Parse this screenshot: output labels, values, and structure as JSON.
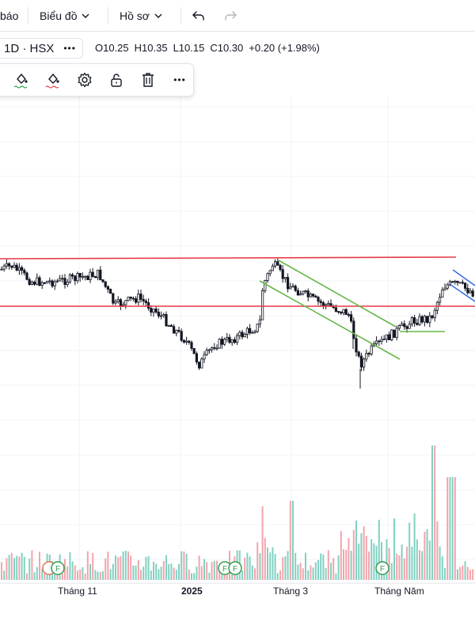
{
  "topbar": {
    "partial_menu_label": "báo",
    "chart_menu_label": "Biểu đồ",
    "profile_menu_label": "Hồ sơ"
  },
  "symbol": {
    "label": "1D · HSX",
    "more_label": "•••"
  },
  "ohlc": {
    "open": "O10.25",
    "high": "H10.35",
    "low": "L10.15",
    "close": "C10.30",
    "change": "+0.20 (+1.98%)"
  },
  "drawing_toolbar": {
    "icons": [
      "paint-bucket-icon",
      "paint-bucket-icon",
      "gear-icon",
      "unlock-icon",
      "trash-icon",
      "more-icon"
    ],
    "more_label": "•••"
  },
  "x_axis": {
    "labels": [
      "Tháng 11",
      "2025",
      "Tháng 3",
      "Tháng Năm"
    ]
  },
  "colors": {
    "up_candle": "#131722",
    "volume_up": "#82d1c2",
    "volume_down": "#f4a4ab",
    "horizontal_lines": "#e53945",
    "channel_green": "#66b84a",
    "channel_blue": "#3a6fe0",
    "event_marker": "#2e9e50",
    "event_marker_alt": "#e57356"
  },
  "event_markers": [
    "F",
    "F",
    "F",
    "F"
  ],
  "chart_data": {
    "type": "candlestick",
    "price_levels": [
      10.3,
      10.1
    ],
    "last_bar": {
      "open": 10.25,
      "high": 10.35,
      "low": 10.15,
      "close": 10.3
    }
  }
}
